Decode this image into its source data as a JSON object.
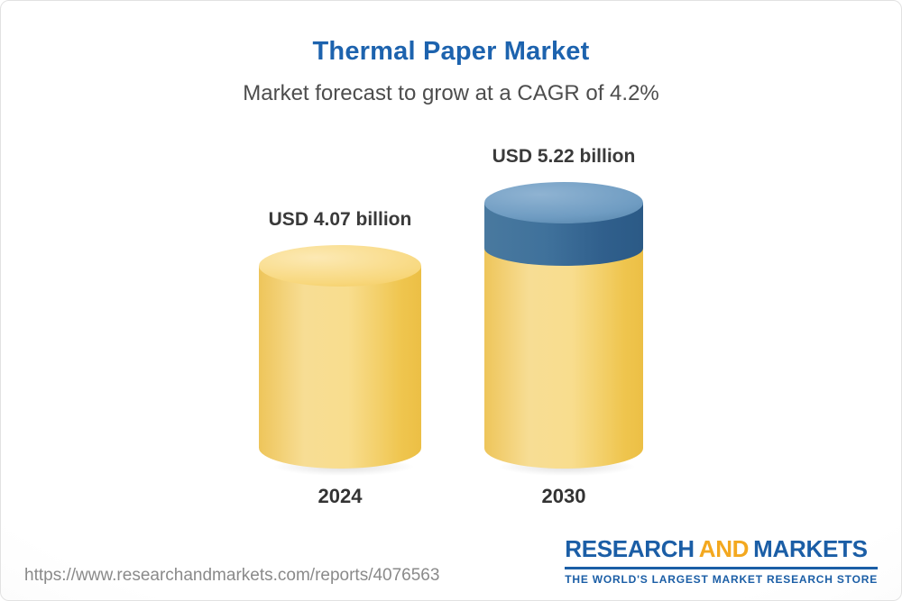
{
  "page": {
    "title": "Thermal Paper Market",
    "subtitle": "Market forecast to grow at a CAGR of 4.2%"
  },
  "chart_data": {
    "type": "bar",
    "title": "Thermal Paper Market",
    "subtitle": "Market forecast to grow at a CAGR of 4.2%",
    "categories": [
      "2024",
      "2030"
    ],
    "values": [
      4.07,
      5.22
    ],
    "unit": "USD billion",
    "value_labels": [
      "USD 4.07 billion",
      "USD 5.22 billion"
    ],
    "cagr": "4.2%",
    "ylim": [
      0,
      5.22
    ],
    "legend": "none",
    "grid": "off",
    "colors": {
      "base_bar": "#F5CE63",
      "growth_segment": "#39719F",
      "title_text": "#1D63AE"
    }
  },
  "footer": {
    "url": "https://www.researchandmarkets.com/reports/4076563",
    "logo": {
      "part1": "RESEARCH",
      "part2": "AND",
      "part3": "MARKETS",
      "tagline": "THE WORLD'S LARGEST MARKET RESEARCH STORE"
    }
  }
}
